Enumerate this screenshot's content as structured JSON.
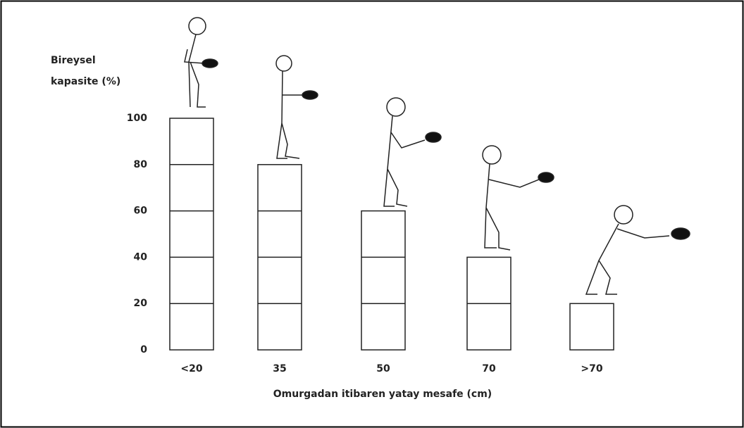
{
  "chart_data": {
    "type": "bar",
    "y_label": [
      "Bireysel",
      "kapasite (%)"
    ],
    "x_label": "Omurgadan itibaren yatay mesafe (cm)",
    "categories": [
      "<20",
      "35",
      "50",
      "70",
      ">70"
    ],
    "values": [
      100,
      80,
      60,
      40,
      20
    ],
    "color": "#ffffff",
    "ylim": [
      0,
      100
    ],
    "yticks": [
      0,
      20,
      40,
      60,
      80,
      100
    ],
    "grid": false
  }
}
